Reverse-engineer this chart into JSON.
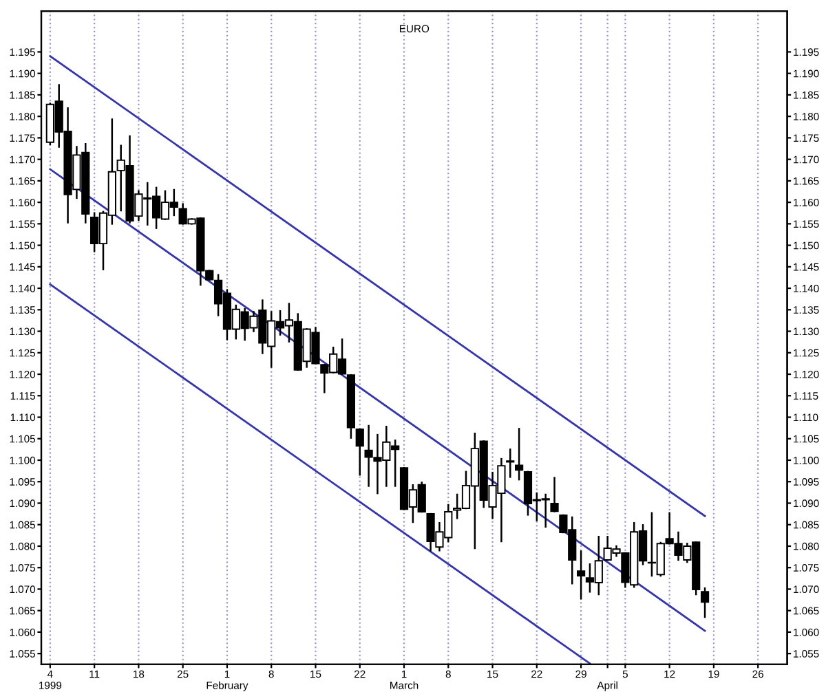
{
  "chart_data": {
    "type": "candlestick",
    "title": "EURO",
    "categories": [
      "4\n1999",
      null,
      null,
      null,
      null,
      "11",
      null,
      null,
      null,
      null,
      "18",
      null,
      null,
      null,
      null,
      "25",
      null,
      null,
      null,
      null,
      "1\nFebruary",
      null,
      null,
      null,
      null,
      "8",
      null,
      null,
      null,
      null,
      "15",
      null,
      null,
      null,
      null,
      "22",
      null,
      null,
      null,
      null,
      "1\nMarch",
      null,
      null,
      null,
      null,
      "8",
      null,
      null,
      null,
      null,
      "15",
      null,
      null,
      null,
      null,
      "22",
      null,
      null,
      null,
      null,
      "29",
      null,
      null,
      "\nApril",
      null,
      "5",
      null,
      null,
      null,
      null,
      "12",
      null,
      null,
      null,
      null,
      "19",
      null,
      null,
      null,
      null,
      "26",
      null,
      null,
      null
    ],
    "ohlc": [
      [
        1.174,
        1.183,
        1.1735,
        1.1828
      ],
      [
        1.1835,
        1.1873,
        1.1729,
        1.1764
      ],
      [
        1.1765,
        1.1819,
        1.1553,
        1.1618
      ],
      [
        1.163,
        1.1729,
        1.161,
        1.171
      ],
      [
        1.1716,
        1.1736,
        1.1553,
        1.1573
      ],
      [
        1.1565,
        1.1575,
        1.1486,
        1.1504
      ],
      [
        1.1504,
        1.1578,
        1.1444,
        1.1575
      ],
      [
        1.157,
        1.1793,
        1.155,
        1.1671
      ],
      [
        1.1674,
        1.1732,
        1.1581,
        1.1698
      ],
      [
        1.1685,
        1.1754,
        1.1553,
        1.1557
      ],
      [
        1.1568,
        1.1626,
        1.1559,
        1.1619
      ],
      [
        1.161,
        1.1645,
        1.1548,
        1.1608
      ],
      [
        1.1614,
        1.1634,
        1.154,
        1.1564
      ],
      [
        1.1561,
        1.1626,
        1.1561,
        1.16
      ],
      [
        1.16,
        1.1629,
        1.157,
        1.1589
      ],
      [
        1.1585,
        1.1596,
        1.155,
        1.155
      ],
      [
        1.155,
        1.1561,
        1.155,
        1.1561
      ],
      [
        1.1563,
        1.1563,
        1.1408,
        1.1441
      ],
      [
        1.1441,
        1.1441,
        1.142,
        1.142
      ],
      [
        1.1418,
        1.1431,
        1.1337,
        1.1364
      ],
      [
        1.1388,
        1.1396,
        1.1281,
        1.1305
      ],
      [
        1.1305,
        1.136,
        1.1283,
        1.1351
      ],
      [
        1.1345,
        1.1352,
        1.128,
        1.1307
      ],
      [
        1.1308,
        1.1345,
        1.13,
        1.1335
      ],
      [
        1.1349,
        1.1372,
        1.1249,
        1.1273
      ],
      [
        1.1265,
        1.1345,
        1.1217,
        1.1324
      ],
      [
        1.1322,
        1.1347,
        1.1292,
        1.1308
      ],
      [
        1.1313,
        1.1364,
        1.1276,
        1.1326
      ],
      [
        1.1322,
        1.134,
        1.121,
        1.121
      ],
      [
        1.123,
        1.1305,
        1.1217,
        1.1305
      ],
      [
        1.1297,
        1.1308,
        1.1225,
        1.1225
      ],
      [
        1.1222,
        1.1222,
        1.1158,
        1.1203
      ],
      [
        1.1204,
        1.1262,
        1.1204,
        1.1247
      ],
      [
        1.1235,
        1.1281,
        1.1201,
        1.1201
      ],
      [
        1.1198,
        1.1198,
        1.1052,
        1.1076
      ],
      [
        1.1072,
        1.1072,
        1.0966,
        1.1033
      ],
      [
        1.1023,
        1.108,
        1.094,
        1.1007
      ],
      [
        1.1006,
        1.1059,
        1.0923,
        1.0998
      ],
      [
        1.1,
        1.1078,
        1.094,
        1.1042
      ],
      [
        1.1033,
        1.1046,
        1.094,
        1.1025
      ],
      [
        1.0982,
        1.0982,
        1.0886,
        1.0886
      ],
      [
        1.0891,
        1.0942,
        1.0856,
        1.0931
      ],
      [
        1.0943,
        1.0948,
        1.088,
        1.088
      ],
      [
        1.0875,
        1.0875,
        1.079,
        1.0811
      ],
      [
        1.0798,
        1.0854,
        1.079,
        1.0833
      ],
      [
        1.082,
        1.0896,
        1.0811,
        1.088
      ],
      [
        1.0884,
        1.092,
        1.0865,
        1.0888
      ],
      [
        1.0888,
        1.0973,
        1.0888,
        1.0941
      ],
      [
        1.094,
        1.1062,
        1.0795,
        1.1027
      ],
      [
        1.1044,
        1.1044,
        1.0891,
        1.0907
      ],
      [
        1.0891,
        1.0971,
        1.0865,
        1.0941
      ],
      [
        1.0923,
        1.1003,
        1.0811,
        1.0987
      ],
      [
        1.0998,
        1.1025,
        1.0961,
        1.0996
      ],
      [
        1.0988,
        1.1073,
        1.0955,
        1.0977
      ],
      [
        1.0973,
        1.0973,
        1.0873,
        1.0899
      ],
      [
        1.0908,
        1.0923,
        1.086,
        1.0906
      ],
      [
        1.091,
        1.092,
        1.0845,
        1.0908
      ],
      [
        1.0899,
        1.0959,
        1.0881,
        1.0881
      ],
      [
        1.0872,
        1.0872,
        1.0832,
        1.0832
      ],
      [
        1.0838,
        1.0867,
        1.0713,
        1.0768
      ],
      [
        1.0742,
        1.0788,
        1.0678,
        1.0731
      ],
      [
        1.0726,
        1.0758,
        1.0694,
        1.0717
      ],
      [
        1.0715,
        1.0822,
        1.0688,
        1.0766
      ],
      [
        1.0768,
        1.0822,
        1.0768,
        1.0795
      ],
      [
        1.0784,
        1.08,
        1.0777,
        1.0793
      ],
      [
        1.0784,
        1.0784,
        1.0705,
        1.0716
      ],
      [
        1.071,
        1.0854,
        1.0705,
        1.0833
      ],
      [
        1.0835,
        1.0849,
        1.0758,
        1.0766
      ],
      [
        1.0762,
        1.0877,
        1.0731,
        1.0761
      ],
      [
        1.0734,
        1.0808,
        1.0731,
        1.0806
      ],
      [
        1.0817,
        1.0877,
        1.0806,
        1.0806
      ],
      [
        1.0806,
        1.0832,
        1.0768,
        1.0779
      ],
      [
        1.0768,
        1.0806,
        1.0763,
        1.08
      ],
      [
        1.0809,
        1.0809,
        1.0688,
        1.0699
      ],
      [
        1.0694,
        1.0702,
        1.0635,
        1.067
      ],
      null,
      null,
      null,
      null,
      null,
      null,
      null,
      null,
      null
    ],
    "series": [
      {
        "type": "line",
        "color": "#3636a8",
        "values": [
          1.194,
          null,
          null,
          null,
          null,
          null,
          null,
          null,
          null,
          null,
          null,
          null,
          null,
          null,
          null,
          null,
          null,
          null,
          null,
          null,
          null,
          null,
          null,
          null,
          null,
          null,
          null,
          null,
          null,
          null,
          null,
          null,
          null,
          null,
          null,
          null,
          null,
          null,
          null,
          null,
          null,
          null,
          null,
          null,
          null,
          null,
          null,
          null,
          null,
          null,
          null,
          null,
          null,
          null,
          null,
          null,
          null,
          null,
          null,
          null,
          null,
          null,
          null,
          null,
          null,
          null,
          null,
          null,
          null,
          null,
          null,
          null,
          null,
          null,
          1.087,
          null,
          null,
          null,
          null,
          null,
          null,
          null,
          null,
          null
        ]
      },
      {
        "type": "line",
        "color": "#3636a8",
        "values": [
          1.1677,
          null,
          null,
          null,
          null,
          null,
          null,
          null,
          null,
          null,
          null,
          null,
          null,
          null,
          null,
          null,
          null,
          null,
          null,
          null,
          null,
          null,
          null,
          null,
          null,
          null,
          null,
          null,
          null,
          null,
          null,
          null,
          null,
          null,
          null,
          null,
          null,
          null,
          null,
          null,
          null,
          null,
          null,
          null,
          null,
          null,
          null,
          null,
          null,
          null,
          null,
          null,
          null,
          null,
          null,
          null,
          null,
          null,
          null,
          null,
          null,
          null,
          null,
          null,
          null,
          null,
          null,
          null,
          null,
          null,
          null,
          null,
          null,
          null,
          1.0603,
          null,
          null,
          null,
          null,
          null,
          null,
          null,
          null,
          null
        ]
      },
      {
        "type": "line",
        "color": "#3636a8",
        "values": [
          1.1409,
          null,
          null,
          null,
          null,
          null,
          null,
          null,
          null,
          null,
          null,
          null,
          null,
          null,
          null,
          null,
          null,
          null,
          null,
          null,
          null,
          null,
          null,
          null,
          null,
          null,
          null,
          null,
          null,
          null,
          null,
          null,
          null,
          null,
          null,
          null,
          null,
          null,
          null,
          null,
          null,
          null,
          null,
          null,
          null,
          null,
          null,
          null,
          null,
          null,
          null,
          null,
          null,
          null,
          null,
          null,
          null,
          null,
          null,
          null,
          null,
          1.0527,
          null,
          null,
          null,
          null,
          null,
          null,
          null,
          null,
          null,
          null,
          null,
          null,
          null,
          null,
          null,
          null,
          null,
          null,
          null,
          null,
          null,
          null
        ]
      }
    ],
    "ylim": [
      1.0525,
      1.2045
    ],
    "yticks": [
      {
        "value": 1.055,
        "label": "1.055"
      },
      {
        "value": 1.06,
        "label": "1.060"
      },
      {
        "value": 1.065,
        "label": "1.065"
      },
      {
        "value": 1.07,
        "label": "1.070"
      },
      {
        "value": 1.075,
        "label": "1.075"
      },
      {
        "value": 1.08,
        "label": "1.080"
      },
      {
        "value": 1.085,
        "label": "1.085"
      },
      {
        "value": 1.09,
        "label": "1.090"
      },
      {
        "value": 1.095,
        "label": "1.095"
      },
      {
        "value": 1.1,
        "label": "1.100"
      },
      {
        "value": 1.105,
        "label": "1.105"
      },
      {
        "value": 1.11,
        "label": "1.110"
      },
      {
        "value": 1.115,
        "label": "1.115"
      },
      {
        "value": 1.12,
        "label": "1.120"
      },
      {
        "value": 1.125,
        "label": "1.125"
      },
      {
        "value": 1.13,
        "label": "1.130"
      },
      {
        "value": 1.135,
        "label": "1.135"
      },
      {
        "value": 1.14,
        "label": "1.140"
      },
      {
        "value": 1.145,
        "label": "1.145"
      },
      {
        "value": 1.15,
        "label": "1.150"
      },
      {
        "value": 1.155,
        "label": "1.155"
      },
      {
        "value": 1.16,
        "label": "1.160"
      },
      {
        "value": 1.165,
        "label": "1.165"
      },
      {
        "value": 1.17,
        "label": "1.170"
      },
      {
        "value": 1.175,
        "label": "1.175"
      },
      {
        "value": 1.18,
        "label": "1.180"
      },
      {
        "value": 1.185,
        "label": "1.185"
      },
      {
        "value": 1.19,
        "label": "1.190"
      },
      {
        "value": 1.195,
        "label": "1.195"
      }
    ],
    "y2lim": [
      1.0525,
      1.2045
    ],
    "y2ticks": [
      {
        "value": 1.055,
        "label": "1.055"
      },
      {
        "value": 1.06,
        "label": "1.060"
      },
      {
        "value": 1.065,
        "label": "1.065"
      },
      {
        "value": 1.07,
        "label": "1.070"
      },
      {
        "value": 1.075,
        "label": "1.075"
      },
      {
        "value": 1.08,
        "label": "1.080"
      },
      {
        "value": 1.085,
        "label": "1.085"
      },
      {
        "value": 1.09,
        "label": "1.090"
      },
      {
        "value": 1.095,
        "label": "1.095"
      },
      {
        "value": 1.1,
        "label": "1.100"
      },
      {
        "value": 1.105,
        "label": "1.105"
      },
      {
        "value": 1.11,
        "label": "1.110"
      },
      {
        "value": 1.115,
        "label": "1.115"
      },
      {
        "value": 1.12,
        "label": "1.120"
      },
      {
        "value": 1.125,
        "label": "1.125"
      },
      {
        "value": 1.13,
        "label": "1.130"
      },
      {
        "value": 1.135,
        "label": "1.135"
      },
      {
        "value": 1.14,
        "label": "1.140"
      },
      {
        "value": 1.145,
        "label": "1.145"
      },
      {
        "value": 1.15,
        "label": "1.150"
      },
      {
        "value": 1.155,
        "label": "1.155"
      },
      {
        "value": 1.16,
        "label": "1.160"
      },
      {
        "value": 1.165,
        "label": "1.165"
      },
      {
        "value": 1.17,
        "label": "1.170"
      },
      {
        "value": 1.175,
        "label": "1.175"
      },
      {
        "value": 1.18,
        "label": "1.180"
      },
      {
        "value": 1.185,
        "label": "1.185"
      },
      {
        "value": 1.19,
        "label": "1.190"
      },
      {
        "value": 1.195,
        "label": "1.195"
      }
    ],
    "grid": "x"
  }
}
